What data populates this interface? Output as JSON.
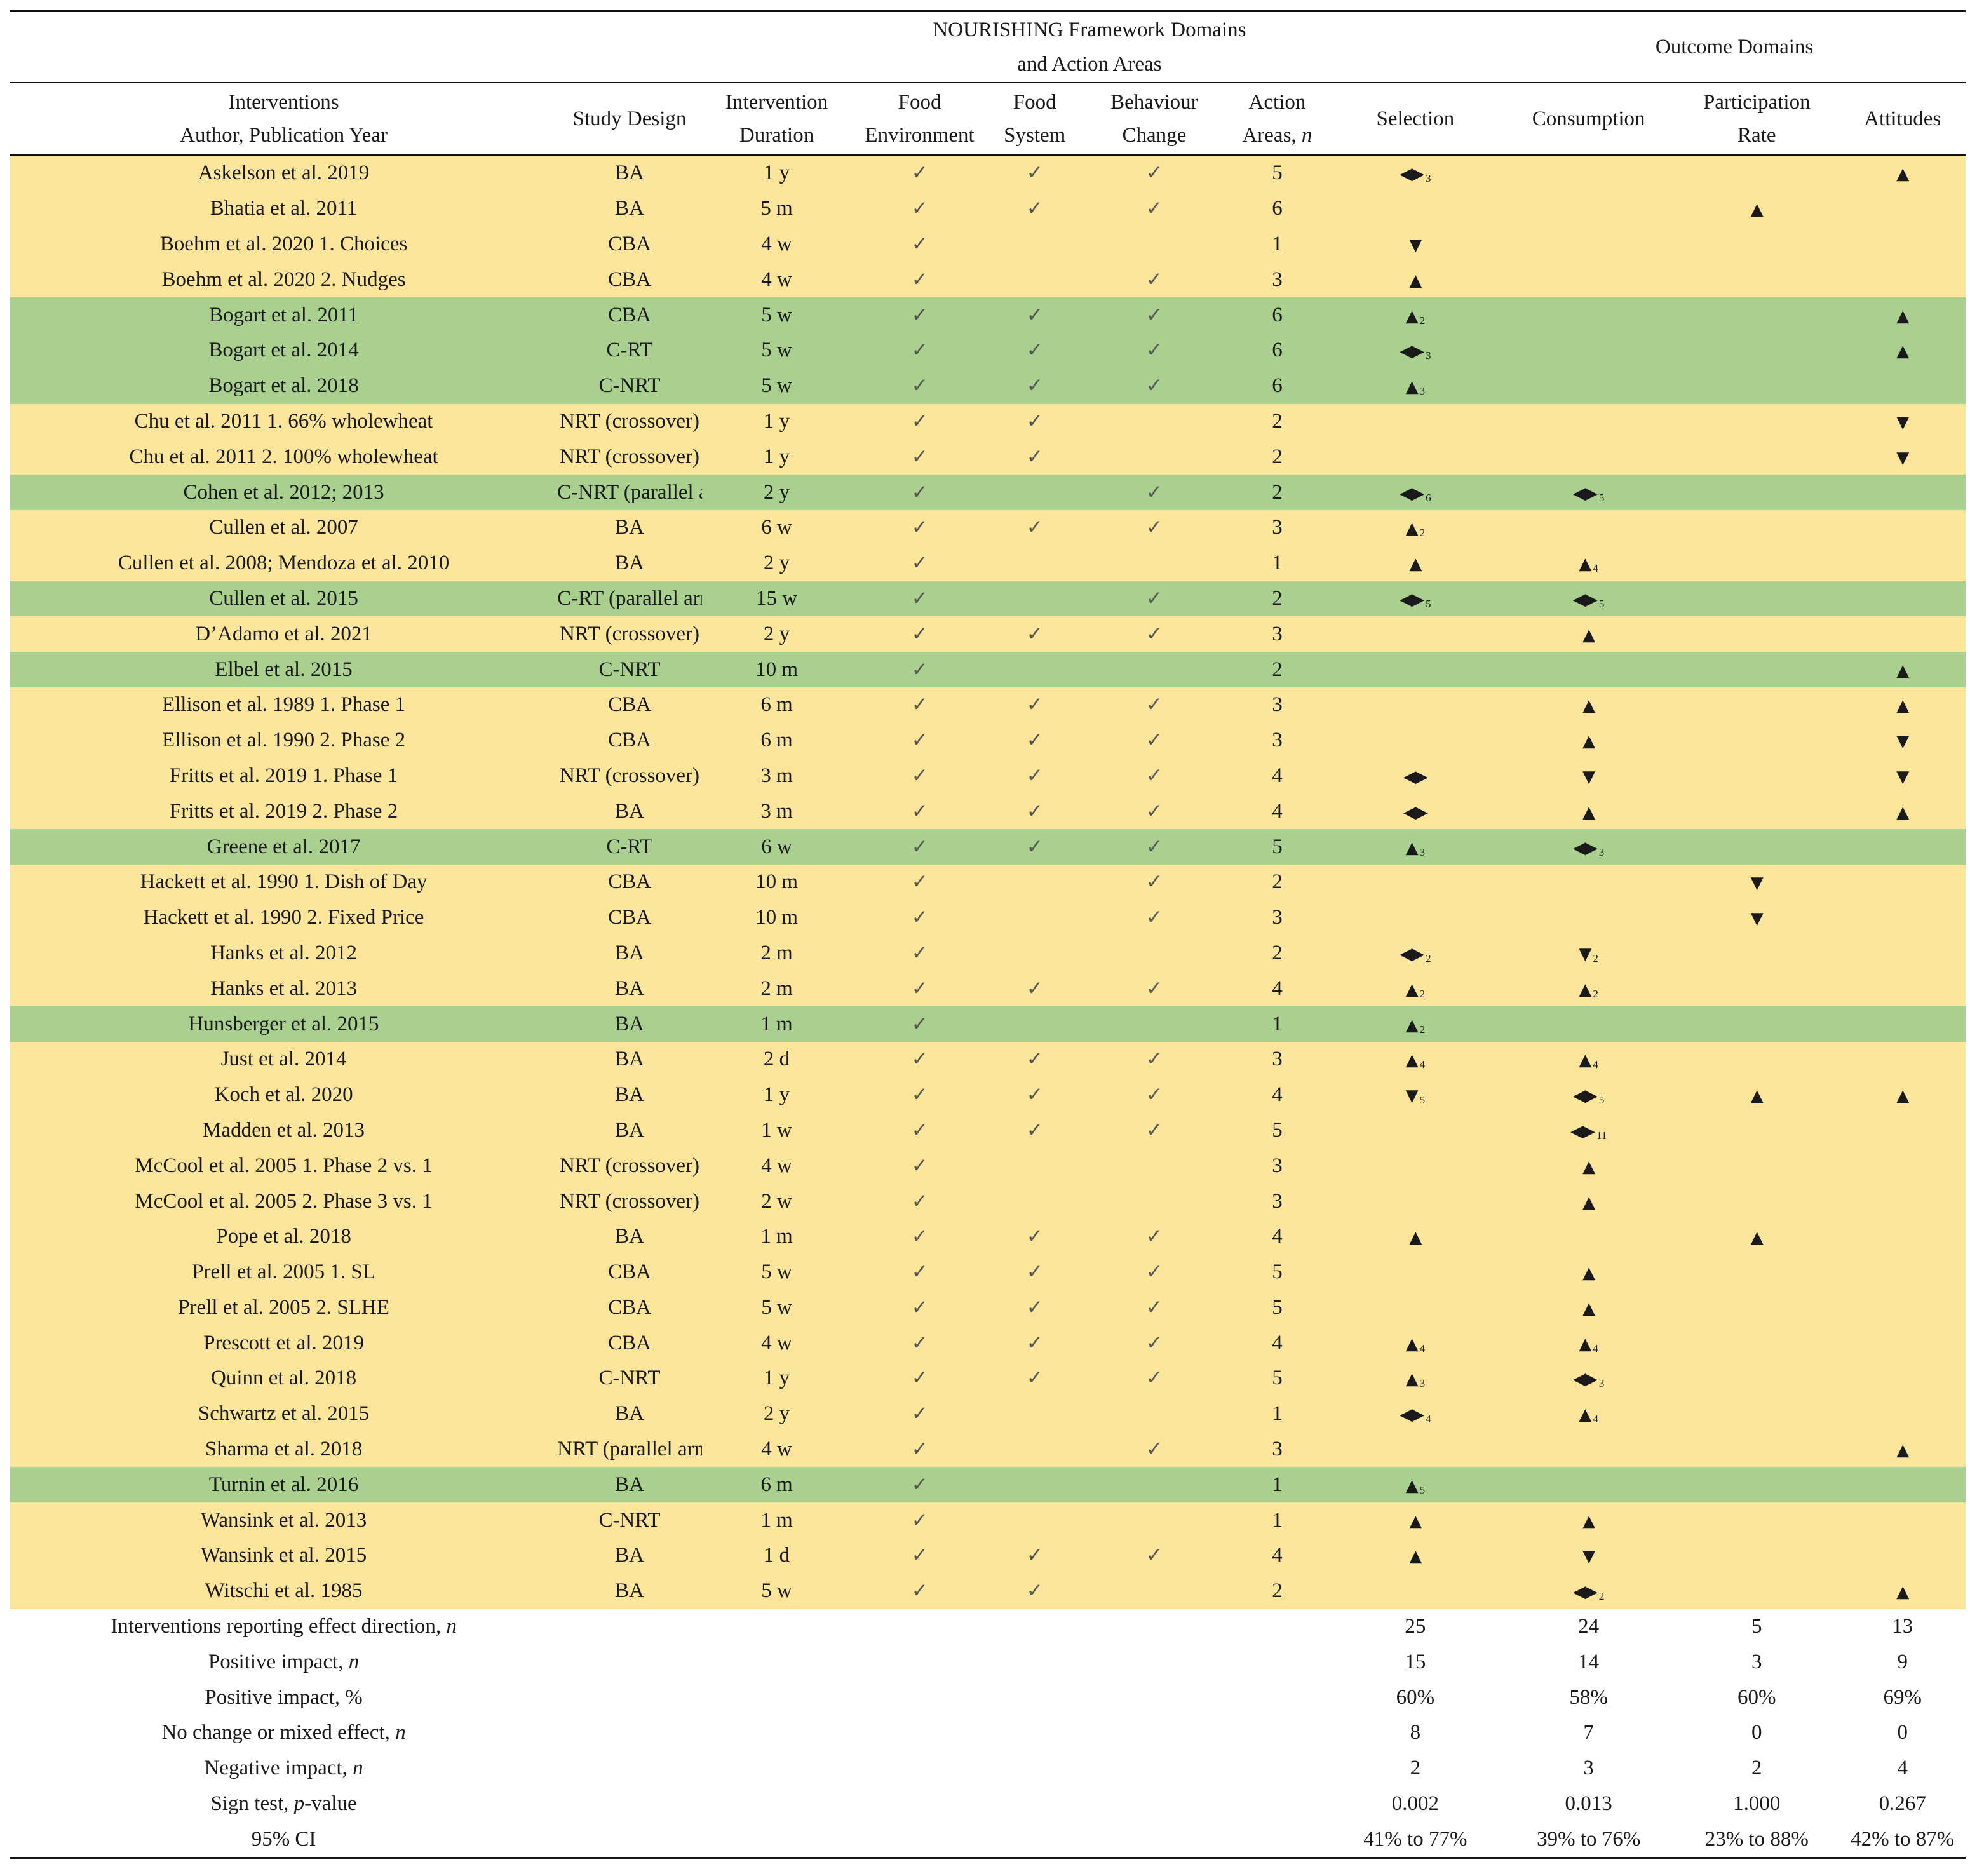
{
  "header": {
    "framework_line1": "NOURISHING Framework Domains",
    "framework_line2": "and Action Areas",
    "outcome": "Outcome Domains",
    "interventions_line1": "Interventions",
    "interventions_line2": "Author, Publication Year",
    "study_design": "Study Design",
    "duration_line1": "Intervention",
    "duration_line2": "Duration",
    "food_env_line1": "Food",
    "food_env_line2": "Environment",
    "food_sys_line1": "Food",
    "food_sys_line2": "System",
    "behaviour_line1": "Behaviour",
    "behaviour_line2": "Change",
    "action_line1": "Action",
    "action_line2": "Areas, ",
    "action_n": "n",
    "selection": "Selection",
    "consumption": "Consumption",
    "participation_line1": "Participation",
    "participation_line2": "Rate",
    "attitudes": "Attitudes"
  },
  "symbols": {
    "check": "✓",
    "up": "▲",
    "down": "▼",
    "mixed": "◀▶"
  },
  "colors": {
    "yellow": "#fae59b",
    "green": "#a9d08f"
  },
  "rows": [
    {
      "name": "Askelson et al. 2019",
      "design": "BA",
      "duration": "1 y",
      "fe": true,
      "fs": true,
      "bc": true,
      "areas": "5",
      "sel": {
        "d": "mixed",
        "n": "3"
      },
      "con": null,
      "part": null,
      "att": {
        "d": "up",
        "n": ""
      },
      "color": "yellow"
    },
    {
      "name": "Bhatia et al. 2011",
      "design": "BA",
      "duration": "5 m",
      "fe": true,
      "fs": true,
      "bc": true,
      "areas": "6",
      "sel": null,
      "con": null,
      "part": {
        "d": "up",
        "n": ""
      },
      "att": null,
      "color": "yellow"
    },
    {
      "name": "Boehm et al. 2020 1. Choices",
      "design": "CBA",
      "duration": "4 w",
      "fe": true,
      "fs": false,
      "bc": false,
      "areas": "1",
      "sel": {
        "d": "down",
        "n": ""
      },
      "con": null,
      "part": null,
      "att": null,
      "color": "yellow"
    },
    {
      "name": "Boehm et al. 2020 2. Nudges",
      "design": "CBA",
      "duration": "4 w",
      "fe": true,
      "fs": false,
      "bc": true,
      "areas": "3",
      "sel": {
        "d": "up",
        "n": ""
      },
      "con": null,
      "part": null,
      "att": null,
      "color": "yellow"
    },
    {
      "name": "Bogart et al. 2011",
      "design": "CBA",
      "duration": "5 w",
      "fe": true,
      "fs": true,
      "bc": true,
      "areas": "6",
      "sel": {
        "d": "up",
        "n": "2"
      },
      "con": null,
      "part": null,
      "att": {
        "d": "up",
        "n": ""
      },
      "color": "green"
    },
    {
      "name": "Bogart et al. 2014",
      "design": "C-RT",
      "duration": "5 w",
      "fe": true,
      "fs": true,
      "bc": true,
      "areas": "6",
      "sel": {
        "d": "mixed",
        "n": "3"
      },
      "con": null,
      "part": null,
      "att": {
        "d": "up",
        "n": ""
      },
      "color": "green"
    },
    {
      "name": "Bogart et al. 2018",
      "design": "C-NRT",
      "duration": "5 w",
      "fe": true,
      "fs": true,
      "bc": true,
      "areas": "6",
      "sel": {
        "d": "up",
        "n": "3"
      },
      "con": null,
      "part": null,
      "att": null,
      "color": "green"
    },
    {
      "name": "Chu et al. 2011 1. 66% wholewheat",
      "design": "NRT (crossover)",
      "duration": "1 y",
      "fe": true,
      "fs": true,
      "bc": false,
      "areas": "2",
      "sel": null,
      "con": null,
      "part": null,
      "att": {
        "d": "down",
        "n": ""
      },
      "color": "yellow"
    },
    {
      "name": "Chu et al. 2011 2. 100% wholewheat",
      "design": "NRT (crossover)",
      "duration": "1 y",
      "fe": true,
      "fs": true,
      "bc": false,
      "areas": "2",
      "sel": null,
      "con": null,
      "part": null,
      "att": {
        "d": "down",
        "n": ""
      },
      "color": "yellow"
    },
    {
      "name": "Cohen et al. 2012; 2013",
      "design": "C-NRT (parallel arm)",
      "duration": "2 y",
      "fe": true,
      "fs": false,
      "bc": true,
      "areas": "2",
      "sel": {
        "d": "mixed",
        "n": "6"
      },
      "con": {
        "d": "mixed",
        "n": "5"
      },
      "part": null,
      "att": null,
      "color": "green"
    },
    {
      "name": "Cullen et al. 2007",
      "design": "BA",
      "duration": "6 w",
      "fe": true,
      "fs": true,
      "bc": true,
      "areas": "3",
      "sel": {
        "d": "up",
        "n": "2"
      },
      "con": null,
      "part": null,
      "att": null,
      "color": "yellow"
    },
    {
      "name": "Cullen et al. 2008; Mendoza et al. 2010",
      "design": "BA",
      "duration": "2 y",
      "fe": true,
      "fs": false,
      "bc": false,
      "areas": "1",
      "sel": {
        "d": "up",
        "n": ""
      },
      "con": {
        "d": "up",
        "n": "4"
      },
      "part": null,
      "att": null,
      "color": "yellow"
    },
    {
      "name": "Cullen et al. 2015",
      "design": "C-RT (parallel arm)",
      "duration": "15 w",
      "fe": true,
      "fs": false,
      "bc": true,
      "areas": "2",
      "sel": {
        "d": "mixed",
        "n": "5"
      },
      "con": {
        "d": "mixed",
        "n": "5"
      },
      "part": null,
      "att": null,
      "color": "green"
    },
    {
      "name": "D’Adamo et al. 2021",
      "design": "NRT (crossover)",
      "duration": "2 y",
      "fe": true,
      "fs": true,
      "bc": true,
      "areas": "3",
      "sel": null,
      "con": {
        "d": "up",
        "n": ""
      },
      "part": null,
      "att": null,
      "color": "yellow"
    },
    {
      "name": "Elbel et al. 2015",
      "design": "C-NRT",
      "duration": "10 m",
      "fe": true,
      "fs": false,
      "bc": false,
      "areas": "2",
      "sel": null,
      "con": null,
      "part": null,
      "att": {
        "d": "up",
        "n": ""
      },
      "color": "green"
    },
    {
      "name": "Ellison et al. 1989 1. Phase 1",
      "design": "CBA",
      "duration": "6 m",
      "fe": true,
      "fs": true,
      "bc": true,
      "areas": "3",
      "sel": null,
      "con": {
        "d": "up",
        "n": ""
      },
      "part": null,
      "att": {
        "d": "up",
        "n": ""
      },
      "color": "yellow"
    },
    {
      "name": "Ellison et al. 1990 2. Phase 2",
      "design": "CBA",
      "duration": "6 m",
      "fe": true,
      "fs": true,
      "bc": true,
      "areas": "3",
      "sel": null,
      "con": {
        "d": "up",
        "n": ""
      },
      "part": null,
      "att": {
        "d": "down",
        "n": ""
      },
      "color": "yellow"
    },
    {
      "name": "Fritts et al. 2019 1. Phase 1",
      "design": "NRT (crossover)",
      "duration": "3 m",
      "fe": true,
      "fs": true,
      "bc": true,
      "areas": "4",
      "sel": {
        "d": "mixed",
        "n": ""
      },
      "con": {
        "d": "down",
        "n": ""
      },
      "part": null,
      "att": {
        "d": "down",
        "n": ""
      },
      "color": "yellow"
    },
    {
      "name": "Fritts et al. 2019 2. Phase 2",
      "design": "BA",
      "duration": "3 m",
      "fe": true,
      "fs": true,
      "bc": true,
      "areas": "4",
      "sel": {
        "d": "mixed",
        "n": ""
      },
      "con": {
        "d": "up",
        "n": ""
      },
      "part": null,
      "att": {
        "d": "up",
        "n": ""
      },
      "color": "yellow"
    },
    {
      "name": "Greene et al. 2017",
      "design": "C-RT",
      "duration": "6 w",
      "fe": true,
      "fs": true,
      "bc": true,
      "areas": "5",
      "sel": {
        "d": "up",
        "n": "3"
      },
      "con": {
        "d": "mixed",
        "n": "3"
      },
      "part": null,
      "att": null,
      "color": "green"
    },
    {
      "name": "Hackett et al. 1990 1. Dish of Day",
      "design": "CBA",
      "duration": "10 m",
      "fe": true,
      "fs": false,
      "bc": true,
      "areas": "2",
      "sel": null,
      "con": null,
      "part": {
        "d": "down",
        "n": ""
      },
      "att": null,
      "color": "yellow"
    },
    {
      "name": "Hackett et al. 1990 2. Fixed Price",
      "design": "CBA",
      "duration": "10 m",
      "fe": true,
      "fs": false,
      "bc": true,
      "areas": "3",
      "sel": null,
      "con": null,
      "part": {
        "d": "down",
        "n": ""
      },
      "att": null,
      "color": "yellow"
    },
    {
      "name": "Hanks et al. 2012",
      "design": "BA",
      "duration": "2 m",
      "fe": true,
      "fs": false,
      "bc": false,
      "areas": "2",
      "sel": {
        "d": "mixed",
        "n": "2"
      },
      "con": {
        "d": "down",
        "n": "2"
      },
      "part": null,
      "att": null,
      "color": "yellow"
    },
    {
      "name": "Hanks et al. 2013",
      "design": "BA",
      "duration": "2 m",
      "fe": true,
      "fs": true,
      "bc": true,
      "areas": "4",
      "sel": {
        "d": "up",
        "n": "2"
      },
      "con": {
        "d": "up",
        "n": "2"
      },
      "part": null,
      "att": null,
      "color": "yellow"
    },
    {
      "name": "Hunsberger et al. 2015",
      "design": "BA",
      "duration": "1 m",
      "fe": true,
      "fs": false,
      "bc": false,
      "areas": "1",
      "sel": {
        "d": "up",
        "n": "2"
      },
      "con": null,
      "part": null,
      "att": null,
      "color": "green"
    },
    {
      "name": "Just et al. 2014",
      "design": "BA",
      "duration": "2 d",
      "fe": true,
      "fs": true,
      "bc": true,
      "areas": "3",
      "sel": {
        "d": "up",
        "n": "4"
      },
      "con": {
        "d": "up",
        "n": "4"
      },
      "part": null,
      "att": null,
      "color": "yellow"
    },
    {
      "name": "Koch et al. 2020",
      "design": "BA",
      "duration": "1 y",
      "fe": true,
      "fs": true,
      "bc": true,
      "areas": "4",
      "sel": {
        "d": "down",
        "n": "5"
      },
      "con": {
        "d": "mixed",
        "n": "5"
      },
      "part": {
        "d": "up",
        "n": ""
      },
      "att": {
        "d": "up",
        "n": ""
      },
      "color": "yellow"
    },
    {
      "name": "Madden et al. 2013",
      "design": "BA",
      "duration": "1 w",
      "fe": true,
      "fs": true,
      "bc": true,
      "areas": "5",
      "sel": null,
      "con": {
        "d": "mixed",
        "n": "11"
      },
      "part": null,
      "att": null,
      "color": "yellow"
    },
    {
      "name": "McCool et al. 2005 1. Phase 2 vs. 1",
      "design": "NRT (crossover)",
      "duration": "4 w",
      "fe": true,
      "fs": false,
      "bc": false,
      "areas": "3",
      "sel": null,
      "con": {
        "d": "up",
        "n": ""
      },
      "part": null,
      "att": null,
      "color": "yellow"
    },
    {
      "name": "McCool et al. 2005 2. Phase 3 vs. 1",
      "design": "NRT (crossover)",
      "duration": "2 w",
      "fe": true,
      "fs": false,
      "bc": false,
      "areas": "3",
      "sel": null,
      "con": {
        "d": "up",
        "n": ""
      },
      "part": null,
      "att": null,
      "color": "yellow"
    },
    {
      "name": "Pope et al. 2018",
      "design": "BA",
      "duration": "1 m",
      "fe": true,
      "fs": true,
      "bc": true,
      "areas": "4",
      "sel": {
        "d": "up",
        "n": ""
      },
      "con": null,
      "part": {
        "d": "up",
        "n": ""
      },
      "att": null,
      "color": "yellow"
    },
    {
      "name": "Prell et al. 2005 1. SL",
      "design": "CBA",
      "duration": "5 w",
      "fe": true,
      "fs": true,
      "bc": true,
      "areas": "5",
      "sel": null,
      "con": {
        "d": "up",
        "n": ""
      },
      "part": null,
      "att": null,
      "color": "yellow"
    },
    {
      "name": "Prell et al. 2005 2. SLHE",
      "design": "CBA",
      "duration": "5 w",
      "fe": true,
      "fs": true,
      "bc": true,
      "areas": "5",
      "sel": null,
      "con": {
        "d": "up",
        "n": ""
      },
      "part": null,
      "att": null,
      "color": "yellow"
    },
    {
      "name": "Prescott et al. 2019",
      "design": "CBA",
      "duration": "4 w",
      "fe": true,
      "fs": true,
      "bc": true,
      "areas": "4",
      "sel": {
        "d": "up",
        "n": "4"
      },
      "con": {
        "d": "up",
        "n": "4"
      },
      "part": null,
      "att": null,
      "color": "yellow"
    },
    {
      "name": "Quinn et al. 2018",
      "design": "C-NRT",
      "duration": "1 y",
      "fe": true,
      "fs": true,
      "bc": true,
      "areas": "5",
      "sel": {
        "d": "up",
        "n": "3"
      },
      "con": {
        "d": "mixed",
        "n": "3"
      },
      "part": null,
      "att": null,
      "color": "yellow"
    },
    {
      "name": "Schwartz et al. 2015",
      "design": "BA",
      "duration": "2 y",
      "fe": true,
      "fs": false,
      "bc": false,
      "areas": "1",
      "sel": {
        "d": "mixed",
        "n": "4"
      },
      "con": {
        "d": "up",
        "n": "4"
      },
      "part": null,
      "att": null,
      "color": "yellow"
    },
    {
      "name": "Sharma et al. 2018",
      "design": "NRT (parallel arm)",
      "duration": "4 w",
      "fe": true,
      "fs": false,
      "bc": true,
      "areas": "3",
      "sel": null,
      "con": null,
      "part": null,
      "att": {
        "d": "up",
        "n": ""
      },
      "color": "yellow"
    },
    {
      "name": "Turnin et al. 2016",
      "design": "BA",
      "duration": "6 m",
      "fe": true,
      "fs": false,
      "bc": false,
      "areas": "1",
      "sel": {
        "d": "up",
        "n": "5"
      },
      "con": null,
      "part": null,
      "att": null,
      "color": "green"
    },
    {
      "name": "Wansink et al. 2013",
      "design": "C-NRT",
      "duration": "1 m",
      "fe": true,
      "fs": false,
      "bc": false,
      "areas": "1",
      "sel": {
        "d": "up",
        "n": ""
      },
      "con": {
        "d": "up",
        "n": ""
      },
      "part": null,
      "att": null,
      "color": "yellow"
    },
    {
      "name": "Wansink et al. 2015",
      "design": "BA",
      "duration": "1 d",
      "fe": true,
      "fs": true,
      "bc": true,
      "areas": "4",
      "sel": {
        "d": "up",
        "n": ""
      },
      "con": {
        "d": "down",
        "n": ""
      },
      "part": null,
      "att": null,
      "color": "yellow"
    },
    {
      "name": "Witschi et al. 1985",
      "design": "BA",
      "duration": "5 w",
      "fe": true,
      "fs": true,
      "bc": false,
      "areas": "2",
      "sel": null,
      "con": {
        "d": "mixed",
        "n": "2"
      },
      "part": null,
      "att": {
        "d": "up",
        "n": ""
      },
      "color": "yellow"
    }
  ],
  "summary": [
    {
      "label": "Interventions reporting effect direction, ",
      "ital": "n",
      "sel": "25",
      "con": "24",
      "part": "5",
      "att": "13"
    },
    {
      "label": "Positive impact, ",
      "ital": "n",
      "sel": "15",
      "con": "14",
      "part": "3",
      "att": "9"
    },
    {
      "label": "Positive impact, %",
      "ital": "",
      "sel": "60%",
      "con": "58%",
      "part": "60%",
      "att": "69%"
    },
    {
      "label": "No change or mixed effect, ",
      "ital": "n",
      "sel": "8",
      "con": "7",
      "part": "0",
      "att": "0"
    },
    {
      "label": "Negative impact, ",
      "ital": "n",
      "sel": "2",
      "con": "3",
      "part": "2",
      "att": "4"
    },
    {
      "label": "Sign test, ",
      "ital": "p",
      "suffix": "-value",
      "sel": "0.002",
      "con": "0.013",
      "part": "1.000",
      "att": "0.267"
    },
    {
      "label": "95% CI",
      "ital": "",
      "sel": "41% to 77%",
      "con": "39% to 76%",
      "part": "23% to 88%",
      "att": "42% to 87%"
    }
  ]
}
